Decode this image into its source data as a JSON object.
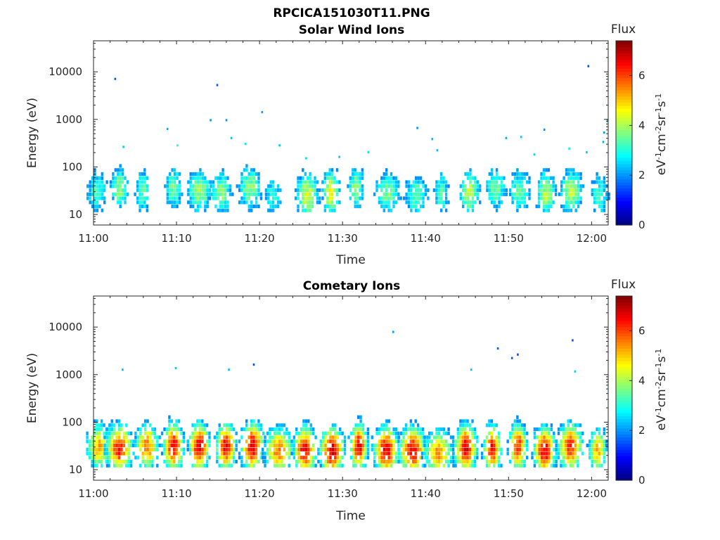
{
  "figure": {
    "title": "RPCICA151030T11.PNG"
  },
  "colormap": "jet",
  "chart_data": [
    {
      "type": "heatmap",
      "title": "Solar Wind Ions",
      "xlabel": "Time",
      "ylabel": "Energy (eV)",
      "x_ticks": [
        "11:00",
        "11:10",
        "11:20",
        "11:30",
        "11:40",
        "11:50",
        "12:00"
      ],
      "y_ticks": [
        "10",
        "100",
        "1000",
        "10000"
      ],
      "y_scale": "log",
      "xlim": [
        "11:00",
        "12:02"
      ],
      "ylim": [
        6,
        45000
      ],
      "colorbar": {
        "title": "Flux",
        "label": "eV-1cm-2sr-1s-1",
        "range": [
          0,
          7.4
        ],
        "ticks": [
          "0",
          "2",
          "4",
          "6"
        ]
      },
      "bursts": [
        {
          "t": 0.3,
          "e": 30,
          "peak": 3.2
        },
        {
          "t": 3.0,
          "e": 35,
          "peak": 3.8
        },
        {
          "t": 5.8,
          "e": 30,
          "peak": 3.4
        },
        {
          "t": 9.5,
          "e": 35,
          "peak": 3.6
        },
        {
          "t": 12.6,
          "e": 30,
          "peak": 3.9
        },
        {
          "t": 15.2,
          "e": 28,
          "peak": 3.7
        },
        {
          "t": 18.7,
          "e": 35,
          "peak": 3.8
        },
        {
          "t": 21.5,
          "e": 25,
          "peak": 3.0
        },
        {
          "t": 25.6,
          "e": 25,
          "peak": 4.4
        },
        {
          "t": 28.5,
          "e": 28,
          "peak": 4.6
        },
        {
          "t": 31.5,
          "e": 35,
          "peak": 3.8
        },
        {
          "t": 35.3,
          "e": 28,
          "peak": 3.7
        },
        {
          "t": 38.8,
          "e": 25,
          "peak": 3.5
        },
        {
          "t": 41.8,
          "e": 28,
          "peak": 3.3
        },
        {
          "t": 45.2,
          "e": 28,
          "peak": 4.3
        },
        {
          "t": 48.3,
          "e": 35,
          "peak": 3.6
        },
        {
          "t": 51.2,
          "e": 30,
          "peak": 3.5
        },
        {
          "t": 54.4,
          "e": 28,
          "peak": 4.2
        },
        {
          "t": 57.4,
          "e": 30,
          "peak": 4.1
        },
        {
          "t": 60.8,
          "e": 25,
          "peak": 3.2
        }
      ],
      "sparse_points": [
        {
          "t": 2.5,
          "e": 7000,
          "v": 1.6
        },
        {
          "t": 14.8,
          "e": 5200,
          "v": 1.6
        },
        {
          "t": 59.5,
          "e": 13000,
          "v": 1.5
        },
        {
          "t": 14.0,
          "e": 950,
          "v": 2.0
        },
        {
          "t": 15.9,
          "e": 950,
          "v": 2.0
        },
        {
          "t": 20.2,
          "e": 1400,
          "v": 2.1
        },
        {
          "t": 8.8,
          "e": 620,
          "v": 2.2
        },
        {
          "t": 16.5,
          "e": 400,
          "v": 2.3
        },
        {
          "t": 38.9,
          "e": 650,
          "v": 2.0
        },
        {
          "t": 40.7,
          "e": 380,
          "v": 2.2
        },
        {
          "t": 51.4,
          "e": 420,
          "v": 2.4
        },
        {
          "t": 49.6,
          "e": 400,
          "v": 2.2
        },
        {
          "t": 54.2,
          "e": 600,
          "v": 2.0
        },
        {
          "t": 61.4,
          "e": 520,
          "v": 2.1
        },
        {
          "t": 61.8,
          "e": 950,
          "v": 2.3
        },
        {
          "t": 3.5,
          "e": 260,
          "v": 2.4
        },
        {
          "t": 22.3,
          "e": 280,
          "v": 2.4
        },
        {
          "t": 25.5,
          "e": 150,
          "v": 2.5
        },
        {
          "t": 29.5,
          "e": 160,
          "v": 2.4
        },
        {
          "t": 33.0,
          "e": 200,
          "v": 2.6
        },
        {
          "t": 41.3,
          "e": 220,
          "v": 2.3
        },
        {
          "t": 53.0,
          "e": 180,
          "v": 2.5
        },
        {
          "t": 57.2,
          "e": 240,
          "v": 2.7
        },
        {
          "t": 59.3,
          "e": 200,
          "v": 2.4
        },
        {
          "t": 61.3,
          "e": 330,
          "v": 2.2
        },
        {
          "t": 10.0,
          "e": 280,
          "v": 3.0
        },
        {
          "t": 18.2,
          "e": 300,
          "v": 2.6
        }
      ]
    },
    {
      "type": "heatmap",
      "title": "Cometary Ions",
      "xlabel": "Time",
      "ylabel": "Energy (eV)",
      "x_ticks": [
        "11:00",
        "11:10",
        "11:20",
        "11:30",
        "11:40",
        "11:50",
        "12:00"
      ],
      "y_ticks": [
        "10",
        "100",
        "1000",
        "10000"
      ],
      "y_scale": "log",
      "xlim": [
        "11:00",
        "12:02"
      ],
      "ylim": [
        6,
        45000
      ],
      "colorbar": {
        "title": "Flux",
        "label": "eV-1cm-2sr-1s-1",
        "range": [
          0,
          7.4
        ],
        "ticks": [
          "0",
          "2",
          "4",
          "6"
        ]
      },
      "bursts": [
        {
          "t": 0.5,
          "e": 30,
          "peak": 5.2
        },
        {
          "t": 3.0,
          "e": 28,
          "peak": 6.4
        },
        {
          "t": 6.3,
          "e": 30,
          "peak": 5.6
        },
        {
          "t": 9.5,
          "e": 30,
          "peak": 6.6
        },
        {
          "t": 12.6,
          "e": 30,
          "peak": 6.8
        },
        {
          "t": 15.8,
          "e": 30,
          "peak": 6.6
        },
        {
          "t": 19.0,
          "e": 30,
          "peak": 6.8
        },
        {
          "t": 22.2,
          "e": 25,
          "peak": 5.6
        },
        {
          "t": 25.3,
          "e": 25,
          "peak": 6.5
        },
        {
          "t": 28.6,
          "e": 25,
          "peak": 6.8
        },
        {
          "t": 31.8,
          "e": 30,
          "peak": 6.6
        },
        {
          "t": 35.1,
          "e": 25,
          "peak": 6.7
        },
        {
          "t": 38.3,
          "e": 25,
          "peak": 6.5
        },
        {
          "t": 41.4,
          "e": 22,
          "peak": 5.4
        },
        {
          "t": 44.7,
          "e": 28,
          "peak": 6.7
        },
        {
          "t": 47.9,
          "e": 28,
          "peak": 6.4
        },
        {
          "t": 51.0,
          "e": 30,
          "peak": 6.2
        },
        {
          "t": 54.2,
          "e": 25,
          "peak": 6.7
        },
        {
          "t": 57.3,
          "e": 30,
          "peak": 6.2
        },
        {
          "t": 60.6,
          "e": 25,
          "peak": 5.2
        }
      ],
      "sparse_points": [
        {
          "t": 36.0,
          "e": 7800,
          "v": 2.1
        },
        {
          "t": 48.6,
          "e": 3500,
          "v": 1.6
        },
        {
          "t": 50.3,
          "e": 2200,
          "v": 1.6
        },
        {
          "t": 51.0,
          "e": 2600,
          "v": 1.5
        },
        {
          "t": 57.6,
          "e": 5200,
          "v": 1.5
        },
        {
          "t": 3.4,
          "e": 1250,
          "v": 2.3
        },
        {
          "t": 9.8,
          "e": 1350,
          "v": 2.4
        },
        {
          "t": 16.2,
          "e": 1250,
          "v": 2.3
        },
        {
          "t": 19.2,
          "e": 1600,
          "v": 1.5
        },
        {
          "t": 45.4,
          "e": 1250,
          "v": 2.4
        },
        {
          "t": 57.9,
          "e": 1150,
          "v": 2.5
        }
      ]
    }
  ]
}
